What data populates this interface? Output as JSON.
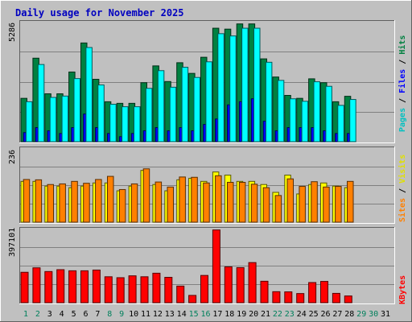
{
  "chart_data": [
    {
      "type": "bar",
      "panel": "hits-files-pages",
      "title": "Daily usage for November 2025",
      "categories": [
        "1",
        "2",
        "3",
        "4",
        "5",
        "6",
        "7",
        "8",
        "9",
        "10",
        "11",
        "12",
        "13",
        "14",
        "15",
        "16",
        "17",
        "18",
        "19",
        "20",
        "21",
        "22",
        "23",
        "24",
        "25",
        "26",
        "27",
        "28",
        "29",
        "30",
        "31"
      ],
      "ymax_label": "5286",
      "ymax": 5286,
      "series": [
        {
          "name": "Hits",
          "color": "#008040",
          "values": [
            1910,
            3680,
            2110,
            2110,
            3070,
            4350,
            2750,
            1760,
            1690,
            1690,
            2600,
            3340,
            2650,
            3480,
            3010,
            3720,
            5000,
            4960,
            5190,
            5190,
            3650,
            2850,
            2040,
            1910,
            2770,
            2600,
            1760,
            2000,
            null,
            null,
            null
          ]
        },
        {
          "name": "Files",
          "color": "#0000ff",
          "values": [
            400,
            620,
            480,
            360,
            620,
            1220,
            620,
            360,
            220,
            360,
            480,
            620,
            480,
            620,
            480,
            760,
            1000,
            1620,
            1760,
            1890,
            900,
            480,
            620,
            620,
            620,
            480,
            360,
            360,
            null,
            null,
            null
          ]
        },
        {
          "name": "Pages",
          "color": "#00ffff",
          "values": [
            1760,
            3400,
            1950,
            2010,
            2780,
            4150,
            2500,
            1650,
            1540,
            1540,
            2350,
            3130,
            2400,
            3280,
            2830,
            3520,
            4760,
            4660,
            5000,
            5000,
            3500,
            2700,
            1890,
            1780,
            2640,
            2440,
            1600,
            1860,
            null,
            null,
            null
          ]
        }
      ],
      "legend_placement": "right-vertical"
    },
    {
      "type": "bar",
      "panel": "visits-sites",
      "categories": [
        "1",
        "2",
        "3",
        "4",
        "5",
        "6",
        "7",
        "8",
        "9",
        "10",
        "11",
        "12",
        "13",
        "14",
        "15",
        "16",
        "17",
        "18",
        "19",
        "20",
        "21",
        "22",
        "23",
        "24",
        "25",
        "26",
        "27",
        "28",
        "29",
        "30",
        "31"
      ],
      "ymax_label": "236",
      "ymax": 236,
      "series": [
        {
          "name": "Visits",
          "color": "#ffff00",
          "values": [
            130,
            130,
            115,
            115,
            110,
            115,
            125,
            125,
            100,
            115,
            165,
            120,
            100,
            135,
            140,
            130,
            160,
            150,
            130,
            130,
            120,
            95,
            150,
            90,
            120,
            125,
            115,
            110,
            null,
            null,
            null
          ]
        },
        {
          "name": "Sites",
          "color": "#ff8000",
          "values": [
            136,
            135,
            120,
            122,
            130,
            124,
            136,
            146,
            104,
            122,
            170,
            128,
            112,
            144,
            143,
            125,
            148,
            127,
            127,
            121,
            110,
            85,
            138,
            114,
            129,
            112,
            114,
            130,
            null,
            null,
            null
          ]
        }
      ],
      "legend_placement": "right-vertical"
    },
    {
      "type": "bar",
      "panel": "kbytes",
      "categories": [
        "1",
        "2",
        "3",
        "4",
        "5",
        "6",
        "7",
        "8",
        "9",
        "10",
        "11",
        "12",
        "13",
        "14",
        "15",
        "16",
        "17",
        "18",
        "19",
        "20",
        "21",
        "22",
        "23",
        "24",
        "25",
        "26",
        "27",
        "28",
        "29",
        "30",
        "31"
      ],
      "ymax_label": "397101",
      "ymax": 397101,
      "series": [
        {
          "name": "KBytes",
          "color": "#ff0000",
          "values": [
            163000,
            187000,
            167000,
            177000,
            171000,
            171000,
            175000,
            139000,
            134000,
            144000,
            139000,
            158000,
            136000,
            89000,
            39000,
            146000,
            390000,
            192000,
            188000,
            215000,
            115000,
            59000,
            58000,
            49000,
            108000,
            114000,
            50000,
            36000,
            null,
            null,
            null
          ]
        }
      ],
      "legend_placement": "right-vertical"
    }
  ],
  "x_axis": {
    "labels": [
      "1",
      "2",
      "3",
      "4",
      "5",
      "6",
      "7",
      "8",
      "9",
      "10",
      "11",
      "12",
      "13",
      "14",
      "15",
      "16",
      "17",
      "18",
      "19",
      "20",
      "21",
      "22",
      "23",
      "24",
      "25",
      "26",
      "27",
      "28",
      "29",
      "30",
      "31"
    ],
    "weekend_days": [
      "1",
      "2",
      "8",
      "9",
      "15",
      "16",
      "22",
      "23",
      "29",
      "30"
    ],
    "weekday_color": "#000000",
    "weekend_color": "#00805c"
  },
  "legend": {
    "top": [
      {
        "text": "Pages",
        "color": "#00c0c0"
      },
      {
        "text": " / ",
        "color": "#000000"
      },
      {
        "text": "Files",
        "color": "#0000ff"
      },
      {
        "text": " / ",
        "color": "#000000"
      },
      {
        "text": "Hits",
        "color": "#008040"
      }
    ],
    "middle": [
      {
        "text": "Sites",
        "color": "#ff8000"
      },
      {
        "text": " / ",
        "color": "#000000"
      },
      {
        "text": "Visits",
        "color": "#e0e000"
      }
    ],
    "bottom": [
      {
        "text": "KBytes",
        "color": "#ff0000"
      }
    ]
  },
  "colors": {
    "background": "#c0c0c0",
    "title": "#0000c0",
    "grid": "#808080"
  }
}
